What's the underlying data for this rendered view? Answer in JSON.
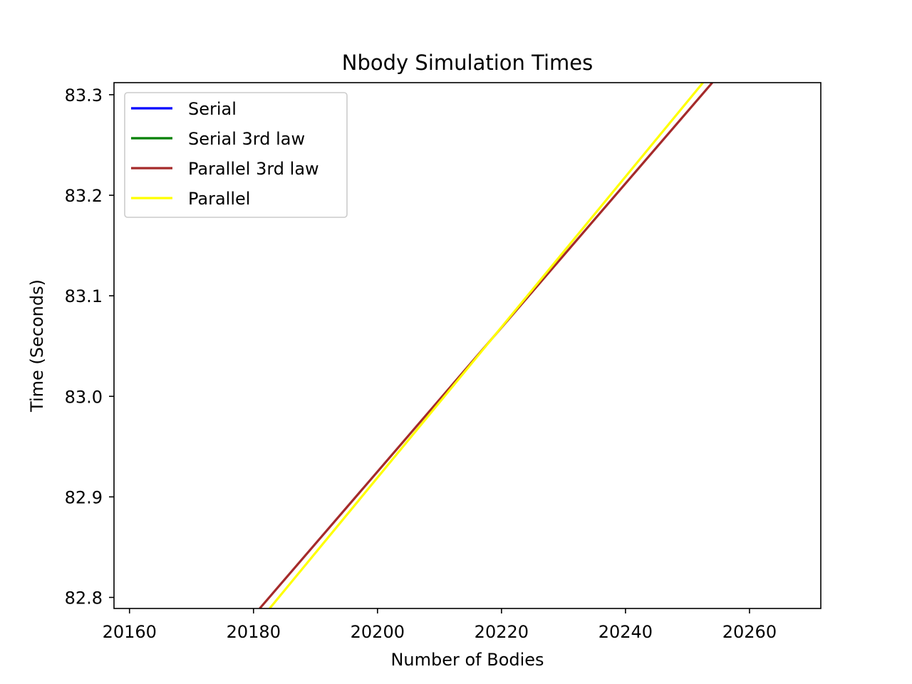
{
  "chart_data": {
    "type": "line",
    "title": "Nbody Simulation Times",
    "xlabel": "Number of Bodies",
    "ylabel": "Time (Seconds)",
    "xlim": [
      20157.5,
      20271.5
    ],
    "ylim": [
      82.789,
      83.312
    ],
    "xticks": [
      20160,
      20180,
      20200,
      20220,
      20240,
      20260
    ],
    "yticks": [
      82.8,
      82.9,
      83.0,
      83.1,
      83.2,
      83.3
    ],
    "ytick_labels": [
      "82.8",
      "82.9",
      "83.0",
      "83.1",
      "83.2",
      "83.3"
    ],
    "grid": false,
    "legend_position": "top-left",
    "series": [
      {
        "name": "Serial",
        "color": "#0000ff",
        "x": [],
        "y": []
      },
      {
        "name": "Serial 3rd law",
        "color": "#008000",
        "x": [],
        "y": []
      },
      {
        "name": "Parallel 3rd law",
        "color": "#a52a2a",
        "x": [
          20181.0,
          20254.0
        ],
        "y": [
          82.789,
          83.312
        ]
      },
      {
        "name": "Parallel",
        "color": "#ffff00",
        "x": [
          20182.6,
          20252.5
        ],
        "y": [
          82.789,
          83.312
        ]
      }
    ]
  }
}
